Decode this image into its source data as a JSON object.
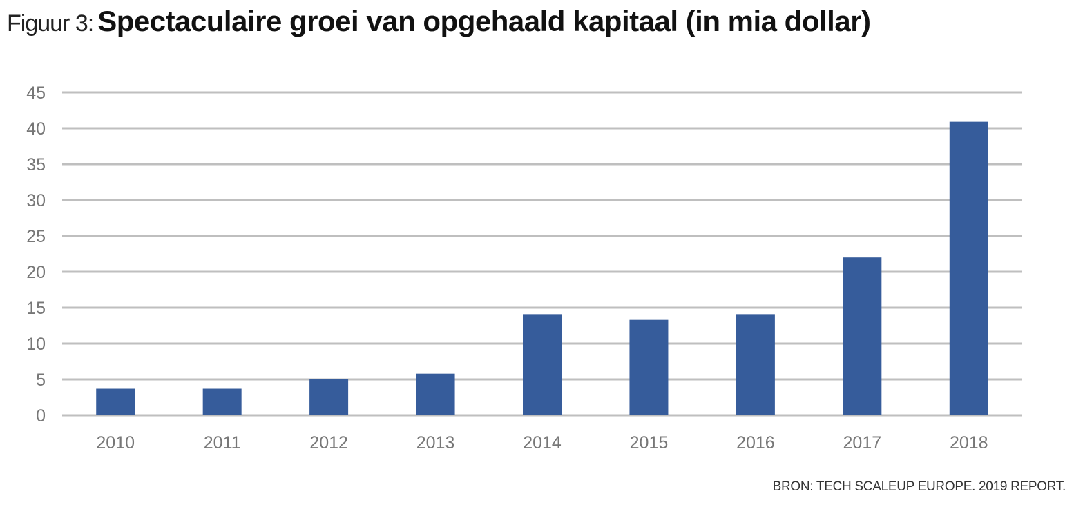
{
  "title": {
    "prefix": "Figuur 3:",
    "main": "Spectaculaire groei van opgehaald kapitaal (in mia dollar)"
  },
  "source": "BRON: TECH SCALEUP EUROPE. 2019 REPORT.",
  "colors": {
    "bar": "#365c9b",
    "grid": "#bfbfbf",
    "tick_text": "#777777"
  },
  "chart_data": {
    "type": "bar",
    "categories": [
      "2010",
      "2011",
      "2012",
      "2013",
      "2014",
      "2015",
      "2016",
      "2017",
      "2018"
    ],
    "values": [
      3.7,
      3.7,
      5,
      5.8,
      14.1,
      13.3,
      14.1,
      22,
      40.9
    ],
    "yticks": [
      "0",
      "5",
      "10",
      "15",
      "20",
      "25",
      "30",
      "35",
      "40",
      "45"
    ],
    "ylim": [
      0,
      45
    ],
    "grid": true,
    "legend": "none"
  }
}
